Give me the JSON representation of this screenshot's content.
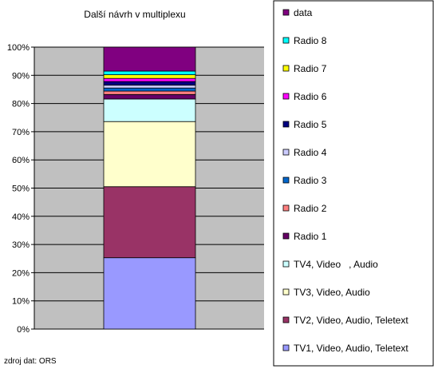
{
  "chart_data": {
    "type": "bar",
    "stacked": true,
    "title": "Další návrh v multiplexu",
    "source": "zdroj dat: ORS",
    "ylim": [
      0,
      100
    ],
    "y_ticks": [
      "0%",
      "10%",
      "20%",
      "30%",
      "40%",
      "50%",
      "60%",
      "70%",
      "80%",
      "90%",
      "100%"
    ],
    "grid": true,
    "plot_background": "#c0c0c0",
    "legend_position": "right",
    "series": [
      {
        "name": "TV1, Video, Audio, Teletext",
        "value": 25.3,
        "color": "#9999ff"
      },
      {
        "name": "TV2, Video, Audio, Teletext",
        "value": 25.2,
        "color": "#993366"
      },
      {
        "name": "TV3, Video, Audio",
        "value": 23.1,
        "color": "#ffffcc"
      },
      {
        "name": "TV4, Video   , Audio",
        "value": 8.0,
        "color": "#ccffff"
      },
      {
        "name": "Radio 1",
        "value": 1.6,
        "color": "#660066"
      },
      {
        "name": "Radio 2",
        "value": 1.2,
        "color": "#ff8080"
      },
      {
        "name": "Radio 3",
        "value": 1.1,
        "color": "#0066cc"
      },
      {
        "name": "Radio 4",
        "value": 1.0,
        "color": "#ccccff"
      },
      {
        "name": "Radio 5",
        "value": 1.3,
        "color": "#000080"
      },
      {
        "name": "Radio 6",
        "value": 1.1,
        "color": "#ff00ff"
      },
      {
        "name": "Radio 7",
        "value": 1.3,
        "color": "#ffff00"
      },
      {
        "name": "Radio 8",
        "value": 1.3,
        "color": "#00ffff"
      },
      {
        "name": "data",
        "value": 8.5,
        "color": "#800080"
      }
    ]
  }
}
